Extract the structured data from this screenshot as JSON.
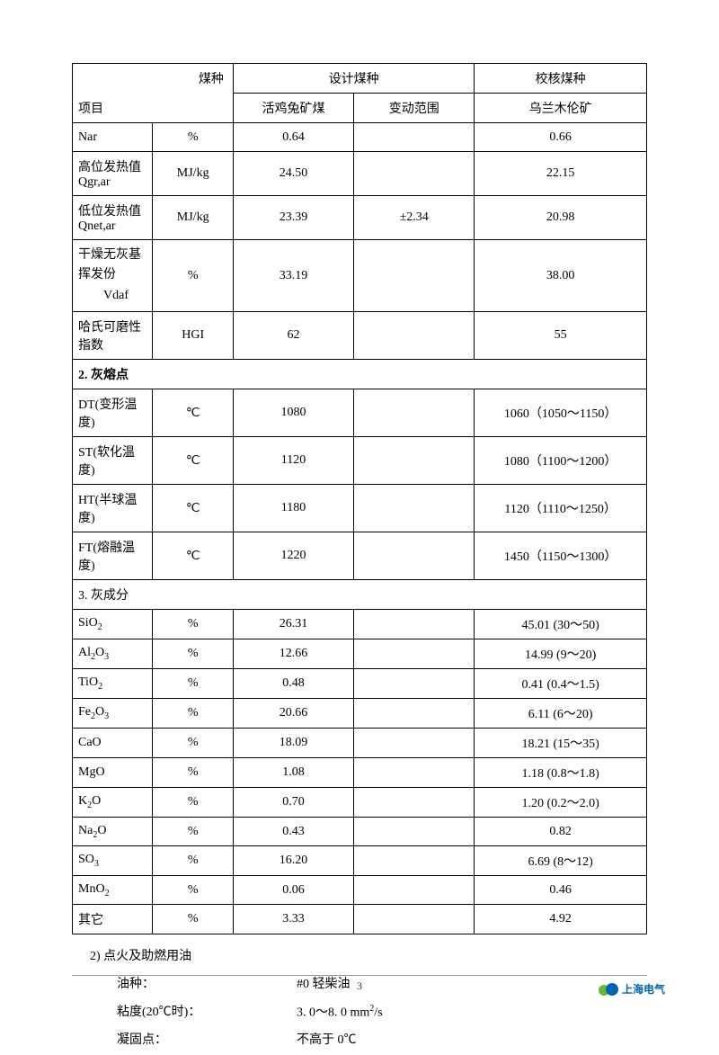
{
  "table": {
    "border_color": "#000000",
    "background_color": "#ffffff",
    "font_size": 14,
    "header": {
      "coal_type": "煤种",
      "design_coal": "设计煤种",
      "check_coal": "校核煤种",
      "project": "项目",
      "design_sub": "活鸡兔矿煤",
      "range": "变动范围",
      "check_sub": "乌兰木伦矿"
    },
    "rows_basic": [
      {
        "label": "Nar",
        "unit": "%",
        "design": "0.64",
        "range": "",
        "check": "0.66"
      },
      {
        "label": "高位发热值 Qgr,ar",
        "unit": "MJ/kg",
        "design": "24.50",
        "range": "",
        "check": "22.15"
      },
      {
        "label": "低位发热值 Qnet,ar",
        "unit": "MJ/kg",
        "design": "23.39",
        "range": "±2.34",
        "check": "20.98"
      },
      {
        "label": "干燥无灰基挥发份",
        "label2": "Vdaf",
        "unit": "%",
        "design": "33.19",
        "range": "",
        "check": "38.00"
      },
      {
        "label": "哈氏可磨性指数",
        "unit": "HGI",
        "design": "62",
        "range": "",
        "check": "55"
      }
    ],
    "section2_title": "2.   灰熔点",
    "rows_ash_melt": [
      {
        "label": "DT(变形温度)",
        "unit": "℃",
        "design": "1080",
        "range": "",
        "check": "1060（1050～1150）"
      },
      {
        "label": "ST(软化温度)",
        "unit": "℃",
        "design": "1120",
        "range": "",
        "check": "1080（1100～1200）"
      },
      {
        "label": "HT(半球温度)",
        "unit": "℃",
        "design": "1180",
        "range": "",
        "check": "1120（1110～1250）"
      },
      {
        "label": "FT(熔融温度)",
        "unit": "℃",
        "design": "1220",
        "range": "",
        "check": "1450（1150～1300）"
      }
    ],
    "section3_title": "3.   灰成分",
    "rows_ash_comp": [
      {
        "label_html": "SiO<sub>2</sub>",
        "label": "SiO2",
        "unit": "%",
        "design": "26.31",
        "range": "",
        "check": "45.01 (30～50)"
      },
      {
        "label_html": "Al<sub>2</sub>O<sub>3</sub>",
        "label": "Al2O3",
        "unit": "%",
        "design": "12.66",
        "range": "",
        "check": "14.99 (9～20)"
      },
      {
        "label_html": "TiO<sub>2</sub>",
        "label": "TiO2",
        "unit": "%",
        "design": "0.48",
        "range": "",
        "check": "0.41 (0.4～1.5)"
      },
      {
        "label_html": "Fe<sub>2</sub>O<sub>3</sub>",
        "label": "Fe2O3",
        "unit": "%",
        "design": "20.66",
        "range": "",
        "check": "6.11 (6～20)"
      },
      {
        "label_html": "CaO",
        "label": "CaO",
        "unit": "%",
        "design": "18.09",
        "range": "",
        "check": "18.21 (15～35)"
      },
      {
        "label_html": "MgO",
        "label": "MgO",
        "unit": "%",
        "design": "1.08",
        "range": "",
        "check": "1.18 (0.8～1.8)"
      },
      {
        "label_html": "K<sub>2</sub>O",
        "label": "K2O",
        "unit": "%",
        "design": "0.70",
        "range": "",
        "check": "1.20 (0.2～2.0)"
      },
      {
        "label_html": "Na<sub>2</sub>O",
        "label": "Na2O",
        "unit": "%",
        "design": "0.43",
        "range": "",
        "check": "0.82"
      },
      {
        "label_html": "SO<sub>3</sub>",
        "label": "SO3",
        "unit": "%",
        "design": "16.20",
        "range": "",
        "check": "6.69 (8～12)"
      },
      {
        "label_html": "MnO<sub>2</sub>",
        "label": "MnO2",
        "unit": "%",
        "design": "0.06",
        "range": "",
        "check": "0.46"
      },
      {
        "label_html": "其它",
        "label": "其它",
        "unit": "%",
        "design": "3.33",
        "range": "",
        "check": "4.92"
      }
    ]
  },
  "below": {
    "heading": "2)   点火及助燃用油",
    "oil_type_label": "油种：",
    "oil_type_value": "#0 轻柴油",
    "viscosity_label": "粘度(20℃时)：",
    "viscosity_value_html": "3. 0～8. 0  mm<sup>2</sup>/s",
    "viscosity_value": "3. 0～8. 0  mm2/s",
    "freeze_label": "凝固点：",
    "freeze_value": "不高于 0℃"
  },
  "footer": {
    "page_number": "3",
    "logo_text": "上海电气",
    "logo_green": "#6ab82f",
    "logo_blue": "#0066b3"
  }
}
